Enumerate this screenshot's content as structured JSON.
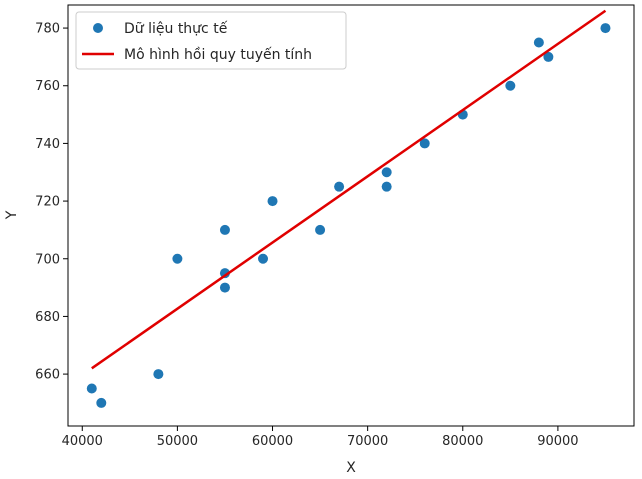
{
  "chart_data": {
    "type": "scatter",
    "xlabel": "X",
    "ylabel": "Y",
    "xlim": [
      38500,
      98000
    ],
    "ylim": [
      642,
      788
    ],
    "xticks": [
      40000,
      50000,
      60000,
      70000,
      80000,
      90000
    ],
    "yticks": [
      660,
      680,
      700,
      720,
      740,
      760,
      780
    ],
    "grid": false,
    "legend_position": "top-left",
    "series": [
      {
        "name": "Dữ liệu thực tế",
        "kind": "scatter",
        "color": "#1f77b4",
        "x": [
          41000,
          42000,
          48000,
          50000,
          55000,
          55000,
          55000,
          59000,
          60000,
          65000,
          67000,
          72000,
          72000,
          76000,
          80000,
          85000,
          88000,
          89000,
          95000
        ],
        "y": [
          655,
          650,
          660,
          700,
          710,
          695,
          690,
          700,
          720,
          710,
          725,
          730,
          725,
          740,
          750,
          760,
          775,
          770,
          780
        ]
      },
      {
        "name": "Mô hình hồi quy tuyến tính",
        "kind": "line",
        "color": "#e00000",
        "x": [
          41000,
          95000
        ],
        "y": [
          662,
          786
        ]
      }
    ]
  }
}
